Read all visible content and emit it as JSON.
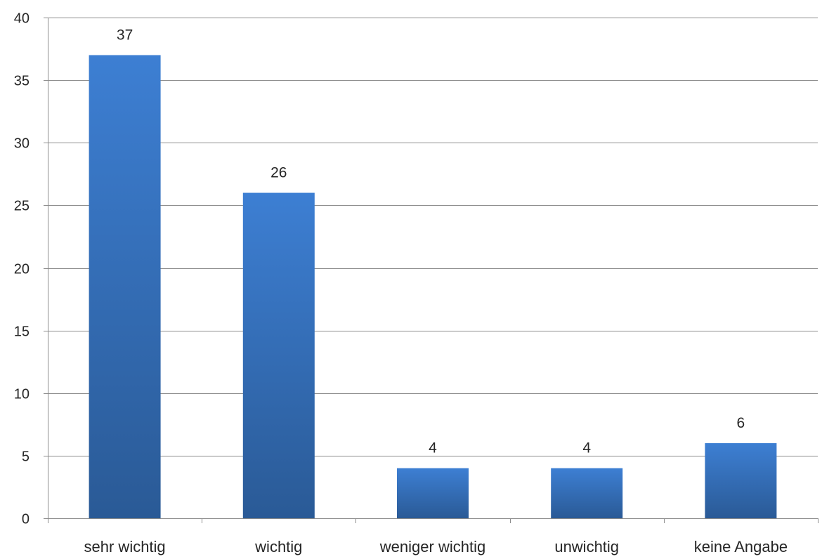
{
  "chart_data": {
    "type": "bar",
    "categories": [
      "sehr wichtig",
      "wichtig",
      "weniger wichtig",
      "unwichtig",
      "keine Angabe"
    ],
    "values": [
      37,
      26,
      4,
      4,
      6
    ],
    "data_labels": [
      "37",
      "26",
      "4",
      "4",
      "6"
    ],
    "ylim": [
      0,
      40
    ],
    "yticks": [
      0,
      5,
      10,
      15,
      20,
      25,
      30,
      35,
      40
    ],
    "grid": true,
    "legend": "none",
    "colors": {
      "bar_top": "#3d7fd3",
      "bar_bottom": "#2a5a96",
      "grid": "#8c8c8c",
      "axis": "#8c8c8c",
      "text": "#262626"
    }
  }
}
